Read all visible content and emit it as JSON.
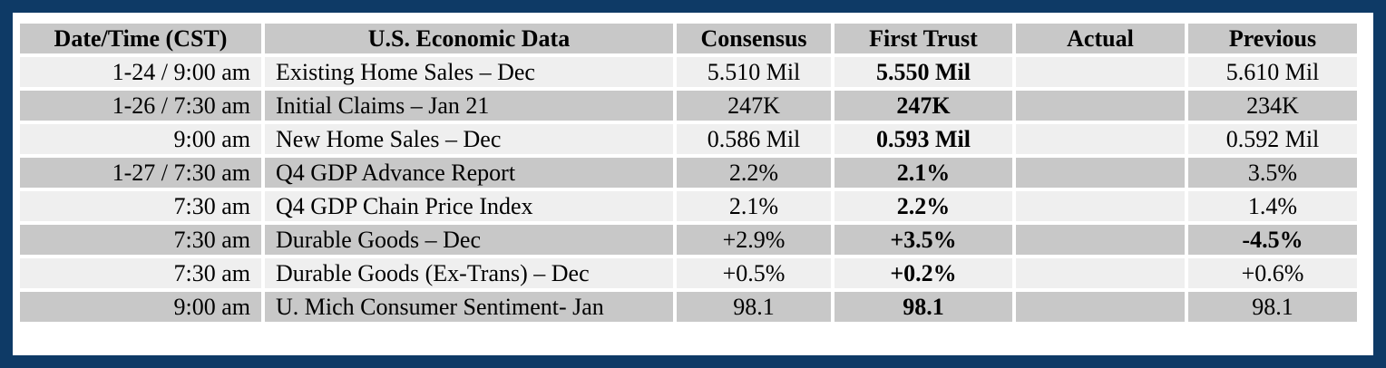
{
  "headers": {
    "datetime": "Date/Time (CST)",
    "data": "U.S. Economic Data",
    "consensus": "Consensus",
    "firsttrust": "First Trust",
    "actual": "Actual",
    "previous": "Previous"
  },
  "rows": [
    {
      "time": "1-24 / 9:00 am",
      "desc": "Existing Home Sales – Dec",
      "consensus": "5.510 Mil",
      "firsttrust": "5.550 Mil",
      "actual": "",
      "previous": "5.610 Mil"
    },
    {
      "time": "1-26 / 7:30 am",
      "desc": "Initial Claims – Jan 21",
      "consensus": "247K",
      "firsttrust": "247K",
      "actual": "",
      "previous": "234K"
    },
    {
      "time": "9:00 am",
      "desc": "New Home Sales – Dec",
      "consensus": "0.586 Mil",
      "firsttrust": "0.593 Mil",
      "actual": "",
      "previous": "0.592 Mil"
    },
    {
      "time": "1-27 / 7:30 am",
      "desc": "Q4 GDP Advance Report",
      "consensus": "2.2%",
      "firsttrust": "2.1%",
      "actual": "",
      "previous": "3.5%"
    },
    {
      "time": "7:30 am",
      "desc": "Q4 GDP Chain Price Index",
      "consensus": "2.1%",
      "firsttrust": "2.2%",
      "actual": "",
      "previous": "1.4%"
    },
    {
      "time": "7:30 am",
      "desc": "Durable Goods – Dec",
      "consensus": "+2.9%",
      "firsttrust": "+3.5%",
      "actual": "",
      "previous": "-4.5%"
    },
    {
      "time": "7:30 am",
      "desc": "Durable Goods (Ex-Trans) – Dec",
      "consensus": "+0.5%",
      "firsttrust": "+0.2%",
      "actual": "",
      "previous": "+0.6%"
    },
    {
      "time": "9:00 am",
      "desc": "U. Mich Consumer Sentiment- Jan",
      "consensus": "98.1",
      "firsttrust": "98.1",
      "actual": "",
      "previous": "98.1"
    }
  ],
  "colors": {
    "frame": "#0e3a66",
    "header_bg": "#c8c8c8",
    "row_light": "#efefef",
    "row_dark": "#c8c8c8"
  }
}
